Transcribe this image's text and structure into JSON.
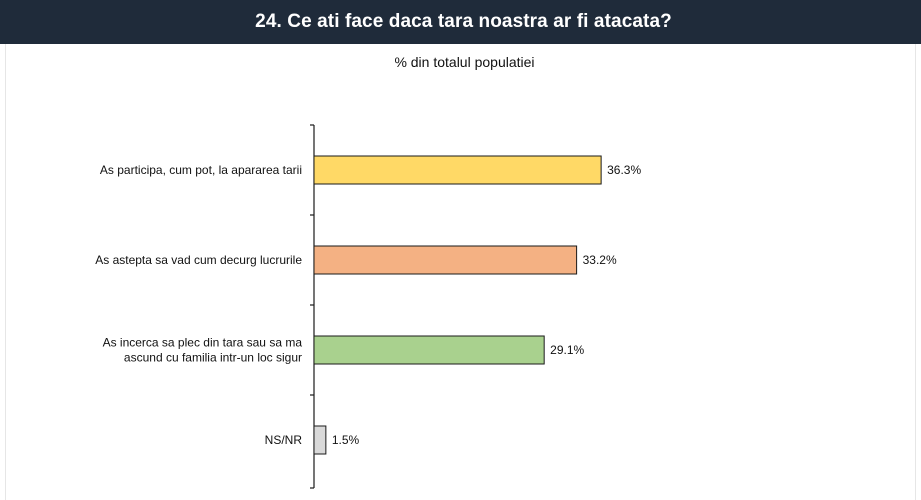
{
  "header": {
    "title": "24. Ce ati face daca tara noastra ar fi atacata?"
  },
  "chart_data": {
    "type": "bar",
    "orientation": "horizontal",
    "title": "24. Ce ati face daca tara noastra ar fi atacata?",
    "subtitle": "% din totalul populatiei",
    "xlabel": "",
    "ylabel": "",
    "grid": false,
    "xlim": [
      0,
      100
    ],
    "categories": [
      [
        "As participa, cum pot, la apararea tarii"
      ],
      [
        "As astepta sa vad cum decurg lucrurile"
      ],
      [
        "As incerca sa plec din tara sau sa ma",
        "ascund cu familia intr-un loc sigur"
      ],
      [
        "NS/NR"
      ]
    ],
    "values": [
      36.3,
      33.2,
      29.1,
      1.5
    ],
    "value_labels": [
      "36.3%",
      "33.2%",
      "29.1%",
      "1.5%"
    ],
    "colors": [
      "#ffd966",
      "#f4b183",
      "#a9d18e",
      "#d9d9d9"
    ],
    "edge_color": "#1a1a1a"
  }
}
